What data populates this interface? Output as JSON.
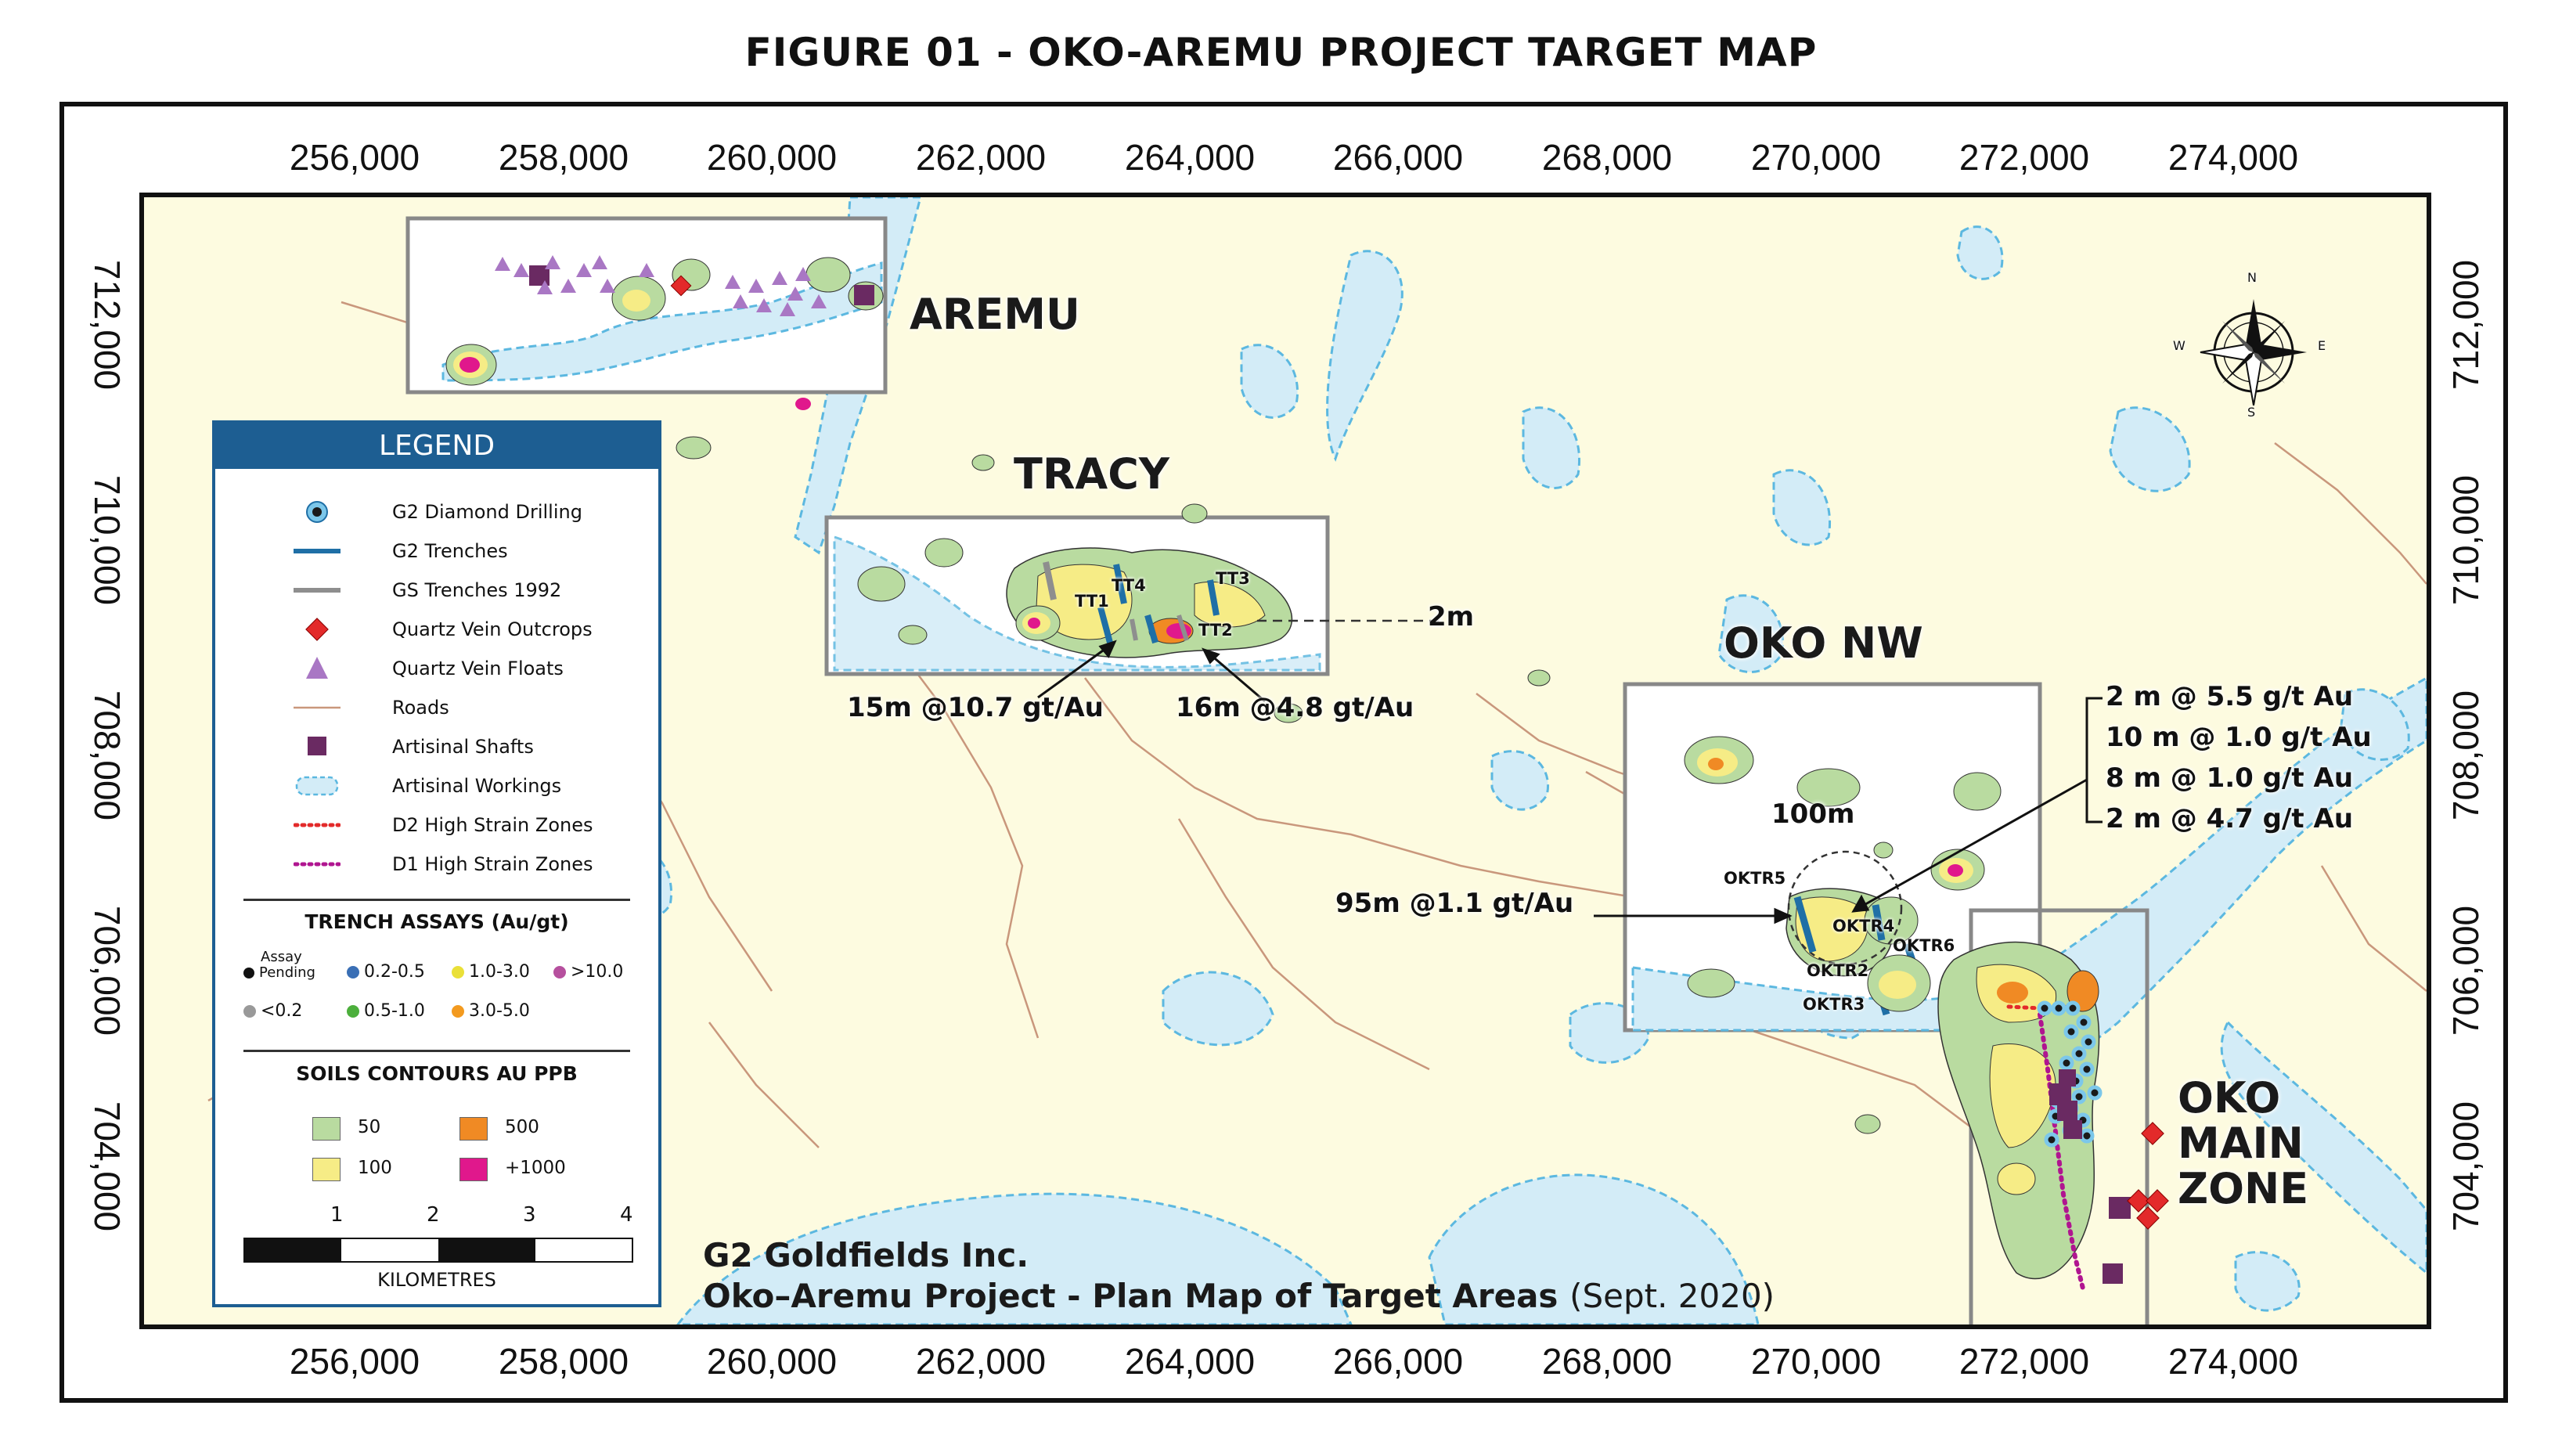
{
  "figure_title": "FIGURE 01 - OKO-AREMU PROJECT TARGET MAP",
  "axes": {
    "easting_ticks": [
      "256,000",
      "258,000",
      "260,000",
      "262,000",
      "264,000",
      "266,000",
      "268,000",
      "270,000",
      "272,000",
      "274,000"
    ],
    "northing_ticks": [
      "712,000",
      "710,000",
      "708,000",
      "706,000",
      "704,000"
    ]
  },
  "targets": {
    "aremu": "AREMU",
    "tracy": "TRACY",
    "oko_nw": "OKO NW",
    "oko_main_line1": "OKO",
    "oko_main_line2": "MAIN",
    "oko_main_line3": "ZONE"
  },
  "trench_labels": {
    "tt1": "TT1",
    "tt2": "TT2",
    "tt3": "TT3",
    "tt4": "TT4",
    "oktr2": "OKTR2",
    "oktr3": "OKTR3",
    "oktr4": "OKTR4",
    "oktr5": "OKTR5",
    "oktr6": "OKTR6"
  },
  "callouts": {
    "tracy_scale": "2m",
    "tracy_left": "15m @10.7 gt/Au",
    "tracy_right": "16m @4.8 gt/Au",
    "oko_nw_scale": "100m",
    "oko_nw_result": "95m @1.1 gt/Au",
    "oko_results": [
      "2 m @ 5.5 g/t Au",
      "10 m @ 1.0 g/t Au",
      "8 m @ 1.0 g/t Au",
      "2 m @ 4.7 g/t Au"
    ]
  },
  "compass": {
    "n": "N",
    "s": "S",
    "e": "E",
    "w": "W"
  },
  "legend": {
    "title": "LEGEND",
    "items": [
      {
        "label": "G2 Diamond Drilling",
        "icon": "drillhole-icon"
      },
      {
        "label": "G2 Trenches",
        "icon": "blue-line-icon"
      },
      {
        "label": "GS Trenches 1992",
        "icon": "grey-line-icon"
      },
      {
        "label": "Quartz Vein Outcrops",
        "icon": "red-diamond-icon"
      },
      {
        "label": "Quartz Vein Floats",
        "icon": "purple-triangle-icon"
      },
      {
        "label": "Roads",
        "icon": "road-line-icon"
      },
      {
        "label": "Artisinal Shafts",
        "icon": "purple-square-icon"
      },
      {
        "label": "Artisinal Workings",
        "icon": "workings-icon"
      },
      {
        "label": "D2 High Strain Zones",
        "icon": "red-dotted-line-icon"
      },
      {
        "label": "D1 High Strain Zones",
        "icon": "magenta-dotted-line-icon"
      }
    ],
    "trench_assays_title": "TRENCH ASSAYS (Au/gt)",
    "assay_pending_top": "Assay",
    "assay_pending_bottom": "Pending",
    "assays": [
      "0.2-0.5",
      "1.0-3.0",
      ">10.0",
      "<0.2",
      "0.5-1.0",
      "3.0-5.0"
    ],
    "soils_title": "SOILS CONTOURS AU PPB",
    "soils": [
      "50",
      "500",
      "100",
      "+1000"
    ],
    "scale_numbers": [
      "1",
      "2",
      "3",
      "4"
    ],
    "scale_unit": "KILOMETRES"
  },
  "colors": {
    "map_background": "#fdfbe0",
    "water": "#d3ecf7",
    "water_outline": "#5cb8e0",
    "soil_50": "#b9dba0",
    "soil_100": "#f6ec86",
    "soil_500": "#f08a24",
    "soil_1000": "#e0188c",
    "legend_header": "#1d5e92",
    "trench_blue": "#1f6fa6",
    "road": "#c9977c"
  },
  "credit": {
    "line1": "G2 Goldfields Inc.",
    "line2": "Oko–Aremu Project - Plan Map of Target Areas",
    "date": "(Sept. 2020)"
  }
}
